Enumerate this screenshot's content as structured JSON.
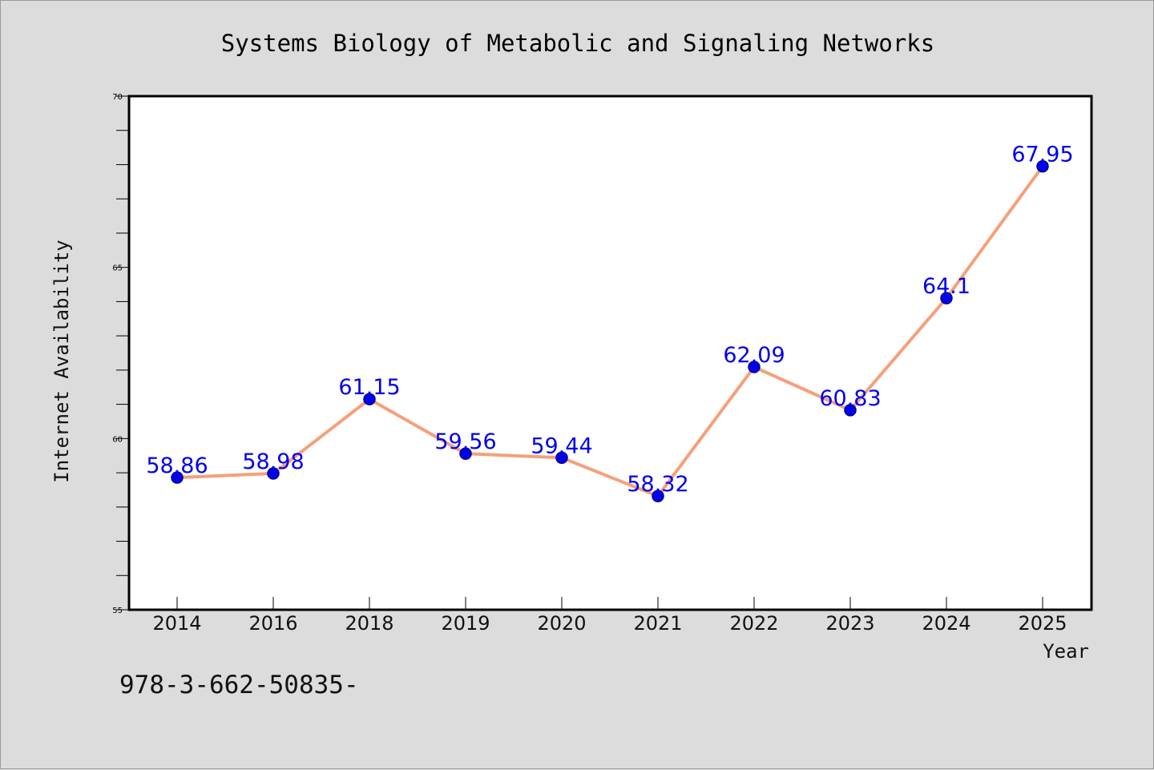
{
  "chart_data": {
    "type": "line",
    "title": "Systems Biology of Metabolic and Signaling Networks",
    "xlabel": "Year",
    "ylabel": "Internet Availability",
    "categories": [
      "2014",
      "2016",
      "2018",
      "2019",
      "2020",
      "2021",
      "2022",
      "2023",
      "2024",
      "2025"
    ],
    "series": [
      {
        "values": [
          58.86,
          58.98,
          61.15,
          59.56,
          59.44,
          58.32,
          62.09,
          60.83,
          64.1,
          67.95
        ],
        "data_labels": [
          "58.86",
          "58.98",
          "61.15",
          "59.56",
          "59.44",
          "58.32",
          "62.09",
          "60.83",
          "64.1",
          "67.95"
        ],
        "line_color": "#f5a07a",
        "marker_color": "#0000ee"
      }
    ],
    "ylim": [
      55,
      70
    ],
    "yticks": [
      "55",
      "60",
      "65",
      "70"
    ],
    "grid": false,
    "legend": "none"
  },
  "footer": {
    "text": "978-3-662-50835-"
  }
}
